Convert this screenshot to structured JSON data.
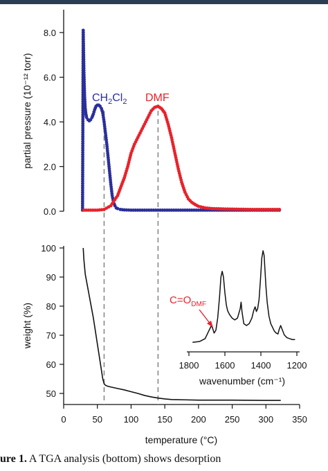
{
  "chart_data": [
    {
      "type": "scatter",
      "panel": "top",
      "ylabel": "partial pressure (10⁻¹² torr)",
      "ylim": [
        0,
        8.6
      ],
      "xlim": [
        0,
        350
      ],
      "y_ticks": [
        "0.0",
        "2.0",
        "4.0",
        "6.0",
        "8.0"
      ],
      "x_ticks": [
        "0",
        "50",
        "100",
        "150",
        "200",
        "250",
        "300",
        "350"
      ],
      "series": [
        {
          "name": "CH2Cl2",
          "color": "#2b2f9a",
          "x": [
            28,
            29,
            30,
            31,
            32,
            33,
            34,
            36,
            38,
            40,
            42,
            44,
            46,
            48,
            50,
            52,
            54,
            56,
            58,
            60,
            62,
            64,
            66,
            68,
            70,
            72,
            74,
            76,
            78,
            80,
            84,
            90,
            100,
            120,
            150,
            200,
            250,
            300,
            320
          ],
          "y": [
            0.05,
            8.1,
            6.3,
            5.2,
            4.6,
            4.35,
            4.2,
            4.1,
            4.05,
            4.1,
            4.2,
            4.35,
            4.55,
            4.7,
            4.75,
            4.75,
            4.7,
            4.6,
            4.4,
            4.0,
            3.5,
            3.0,
            2.4,
            1.8,
            1.2,
            0.7,
            0.4,
            0.25,
            0.15,
            0.12,
            0.08,
            0.06,
            0.05,
            0.05,
            0.05,
            0.05,
            0.05,
            0.05,
            0.05
          ]
        },
        {
          "name": "DMF",
          "color": "#e8222a",
          "x": [
            30,
            50,
            60,
            70,
            80,
            90,
            95,
            100,
            105,
            110,
            115,
            120,
            125,
            130,
            135,
            140,
            145,
            150,
            155,
            160,
            165,
            170,
            175,
            180,
            185,
            190,
            195,
            200,
            210,
            220,
            240,
            260,
            280,
            300,
            320
          ],
          "y": [
            0.05,
            0.05,
            0.08,
            0.25,
            0.7,
            1.5,
            2.0,
            2.6,
            3.0,
            3.3,
            3.6,
            3.9,
            4.2,
            4.5,
            4.65,
            4.7,
            4.6,
            4.4,
            3.9,
            3.3,
            2.6,
            1.9,
            1.3,
            0.85,
            0.55,
            0.4,
            0.3,
            0.22,
            0.15,
            0.12,
            0.1,
            0.09,
            0.08,
            0.08,
            0.08
          ]
        }
      ],
      "labels": {
        "ch2cl2": "CH2Cl2",
        "dmf": "DMF"
      },
      "marker_lines_x": [
        60,
        140
      ]
    },
    {
      "type": "line",
      "panel": "bottom",
      "ylabel": "weight (%)",
      "xlabel": "temperature (°C)",
      "ylim": [
        45,
        100
      ],
      "xlim": [
        0,
        350
      ],
      "y_ticks": [
        "50",
        "60",
        "70",
        "80",
        "90",
        "100"
      ],
      "x_ticks": [
        "0",
        "50",
        "100",
        "150",
        "200",
        "250",
        "300",
        "350"
      ],
      "series": [
        {
          "color": "#111111",
          "x": [
            29,
            30,
            32,
            34,
            36,
            38,
            40,
            42,
            44,
            46,
            48,
            50,
            52,
            54,
            56,
            58,
            60,
            62,
            65,
            70,
            80,
            90,
            100,
            110,
            120,
            130,
            140,
            150,
            160,
            180,
            200,
            250,
            300,
            322
          ],
          "y": [
            100,
            96,
            91,
            88.5,
            86,
            83.5,
            81,
            78.5,
            76,
            73,
            70,
            67,
            64,
            61,
            58,
            55,
            53.3,
            52.8,
            52.5,
            52.2,
            51.7,
            51.2,
            50.6,
            50,
            49.3,
            48.8,
            48.4,
            48.1,
            47.9,
            47.8,
            47.7,
            47.7,
            47.6,
            47.6
          ]
        }
      ]
    },
    {
      "type": "line",
      "panel": "inset",
      "xlabel": "wavenumber (cm⁻¹)",
      "xlim": [
        1800,
        1200
      ],
      "x_ticks": [
        "1800",
        "1600",
        "1400",
        "1200"
      ],
      "annotation": "C=O",
      "annotation_sub": "DMF",
      "series": [
        {
          "color": "#111111",
          "x": [
            1780,
            1740,
            1710,
            1690,
            1675,
            1668,
            1660,
            1650,
            1640,
            1630,
            1622,
            1615,
            1608,
            1600,
            1592,
            1585,
            1575,
            1560,
            1545,
            1530,
            1515,
            1510,
            1505,
            1495,
            1480,
            1465,
            1450,
            1440,
            1432,
            1425,
            1418,
            1410,
            1402,
            1395,
            1388,
            1382,
            1378,
            1372,
            1365,
            1355,
            1345,
            1335,
            1325,
            1315,
            1305,
            1298,
            1290,
            1282,
            1270,
            1255,
            1240,
            1225,
            1210
          ],
          "y": [
            0.02,
            0.03,
            0.06,
            0.14,
            0.2,
            0.17,
            0.12,
            0.15,
            0.28,
            0.5,
            0.72,
            0.78,
            0.72,
            0.55,
            0.42,
            0.36,
            0.32,
            0.28,
            0.26,
            0.28,
            0.38,
            0.45,
            0.35,
            0.22,
            0.2,
            0.22,
            0.28,
            0.36,
            0.4,
            0.35,
            0.38,
            0.48,
            0.7,
            0.92,
            1.0,
            0.95,
            0.82,
            0.62,
            0.45,
            0.3,
            0.22,
            0.18,
            0.14,
            0.12,
            0.11,
            0.16,
            0.2,
            0.16,
            0.1,
            0.07,
            0.06,
            0.05,
            0.05
          ]
        }
      ]
    }
  ],
  "caption": {
    "label": "ure 1.",
    "text": " A TGA analysis (bottom) shows desorption"
  }
}
